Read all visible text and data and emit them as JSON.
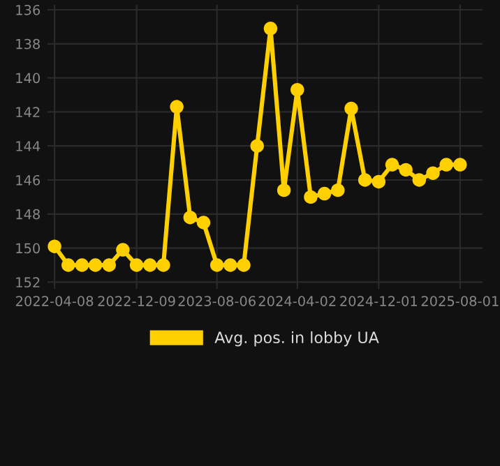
{
  "chart_data": {
    "type": "line",
    "x": [
      "2022-04-08",
      "2022-05-19",
      "2022-06-29",
      "2022-08-08",
      "2022-09-18",
      "2022-10-29",
      "2022-12-09",
      "2023-01-18",
      "2023-02-27",
      "2023-04-08",
      "2023-05-18",
      "2023-06-27",
      "2023-08-06",
      "2023-09-15",
      "2023-10-25",
      "2023-12-04",
      "2024-01-13",
      "2024-02-22",
      "2024-04-02",
      "2024-05-12",
      "2024-06-22",
      "2024-08-01",
      "2024-09-10",
      "2024-10-21",
      "2024-12-01",
      "2025-01-10",
      "2025-02-20",
      "2025-04-01",
      "2025-05-12",
      "2025-06-21",
      "2025-08-01"
    ],
    "series": [
      {
        "name": "Avg. pos. in lobby UA",
        "color": "#ffd000",
        "values": [
          149.9,
          151,
          151,
          151,
          151,
          150.1,
          151,
          151,
          151,
          141.7,
          148.2,
          148.5,
          151,
          151,
          151,
          144.0,
          137.1,
          146.6,
          140.7,
          147.0,
          146.8,
          146.6,
          141.8,
          146.0,
          146.1,
          145.1,
          145.4,
          146.0,
          145.6,
          145.1,
          145.1
        ]
      }
    ],
    "xlim": [
      "2022-03-18",
      "2025-10-07"
    ],
    "xticks": [
      {
        "value": "2022-04-08",
        "label": "2022-04-08"
      },
      {
        "value": "2022-12-09",
        "label": "2022-12-09"
      },
      {
        "value": "2023-08-06",
        "label": "2023-08-06"
      },
      {
        "value": "2024-04-02",
        "label": "2024-04-02"
      },
      {
        "value": "2024-12-01",
        "label": "2024-12-01"
      },
      {
        "value": "2025-08-01",
        "label": "2025-08-01"
      }
    ],
    "ylim": [
      152.4,
      135.7
    ],
    "yticks": [
      136,
      138,
      140,
      142,
      144,
      146,
      148,
      150,
      152
    ],
    "grid": true,
    "legend": "bottom",
    "marker": "circle",
    "line_style": "solid"
  }
}
